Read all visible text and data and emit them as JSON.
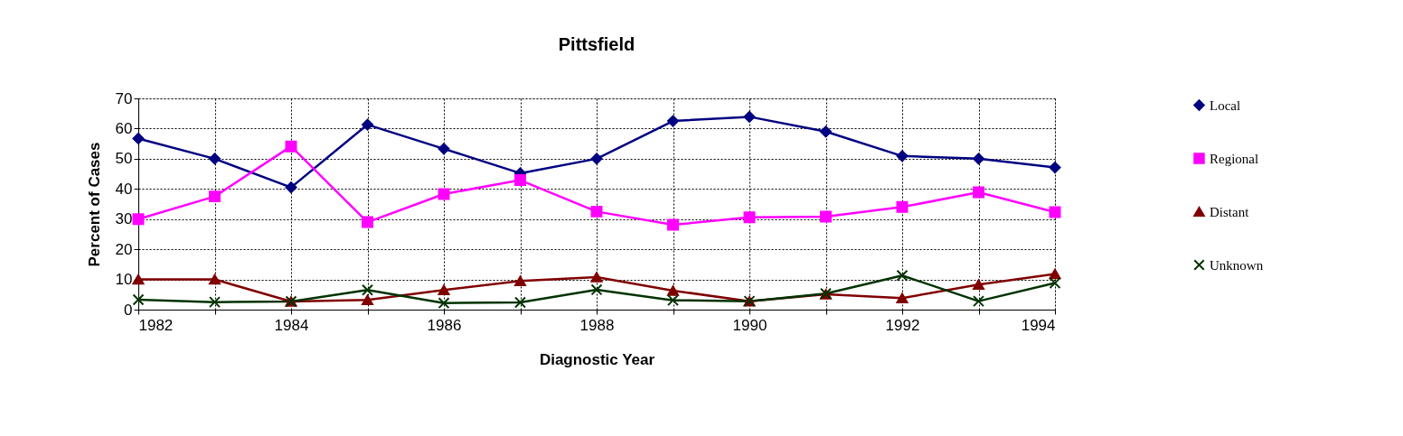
{
  "chart_data": {
    "type": "line",
    "title": "Pittsfield",
    "xlabel": "Diagnostic Year",
    "ylabel": "Percent of Cases",
    "x": [
      1982,
      1983,
      1984,
      1985,
      1986,
      1987,
      1988,
      1989,
      1990,
      1991,
      1992,
      1993,
      1994
    ],
    "series": [
      {
        "name": "Local",
        "color": "#000080",
        "marker": "diamond",
        "values": [
          56.7,
          50,
          40.5,
          61.3,
          53.3,
          45.2,
          50,
          62.5,
          63.9,
          59,
          50.9,
          50,
          47.1
        ]
      },
      {
        "name": "Regional",
        "color": "#ff00ff",
        "marker": "square",
        "values": [
          30,
          37.5,
          54.1,
          29,
          38.3,
          42.9,
          32.5,
          28.1,
          30.6,
          30.8,
          34,
          38.9,
          32.3
        ]
      },
      {
        "name": "Distant",
        "color": "#800000",
        "marker": "triangle",
        "values": [
          10,
          10,
          2.7,
          3.2,
          6.5,
          9.5,
          10.8,
          6.3,
          2.8,
          5.1,
          3.8,
          8.3,
          11.8
        ]
      },
      {
        "name": "Unknown",
        "color": "#003300",
        "marker": "cross",
        "values": [
          3.3,
          2.5,
          2.7,
          6.5,
          2.2,
          2.4,
          6.6,
          3.1,
          2.8,
          5.3,
          11.3,
          2.8,
          8.8
        ]
      }
    ],
    "xlim": [
      1982,
      1994
    ],
    "xticks": [
      1982,
      {
        "value": 1983,
        "label": null
      },
      1984,
      {
        "value": 1985,
        "label": null
      },
      1986,
      {
        "value": 1987,
        "label": null
      },
      1988,
      {
        "value": 1989,
        "label": null
      },
      1990,
      {
        "value": 1991,
        "label": null
      },
      1992,
      {
        "value": 1993,
        "label": null
      },
      1994
    ],
    "ylim": [
      0,
      70
    ],
    "yticks": [
      0,
      10,
      20,
      30,
      40,
      50,
      60,
      70
    ],
    "grid": true,
    "legend": "right",
    "line_style": "solid"
  }
}
